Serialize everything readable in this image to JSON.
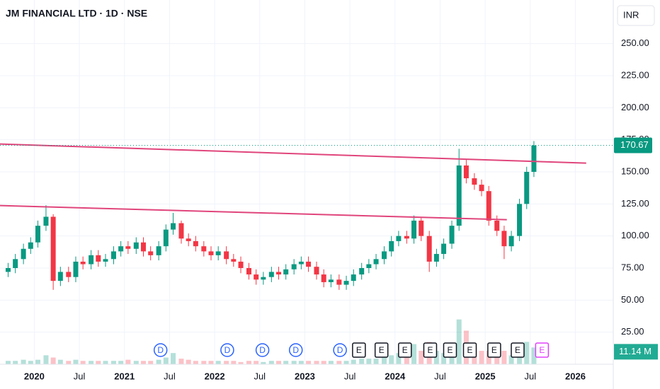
{
  "chart_data": {
    "type": "candlestick",
    "title": "JM FINANCIAL LTD · 1D · NSE",
    "currency": "INR",
    "x": [
      2019.71,
      2019.79,
      2019.88,
      2019.96,
      2020.04,
      2020.13,
      2020.21,
      2020.29,
      2020.38,
      2020.46,
      2020.54,
      2020.63,
      2020.71,
      2020.79,
      2020.88,
      2020.96,
      2021.04,
      2021.13,
      2021.21,
      2021.29,
      2021.38,
      2021.46,
      2021.54,
      2021.63,
      2021.71,
      2021.79,
      2021.88,
      2021.96,
      2022.04,
      2022.13,
      2022.21,
      2022.29,
      2022.38,
      2022.46,
      2022.54,
      2022.63,
      2022.71,
      2022.79,
      2022.88,
      2022.96,
      2023.04,
      2023.13,
      2023.21,
      2023.29,
      2023.38,
      2023.46,
      2023.54,
      2023.63,
      2023.71,
      2023.79,
      2023.88,
      2023.96,
      2024.04,
      2024.13,
      2024.21,
      2024.29,
      2024.38,
      2024.46,
      2024.54,
      2024.63,
      2024.71,
      2024.79,
      2024.88,
      2024.96,
      2025.04,
      2025.13,
      2025.21,
      2025.29,
      2025.38,
      2025.46,
      2025.54
    ],
    "open": [
      72,
      75,
      82,
      90,
      95,
      108,
      115,
      65,
      72,
      68,
      80,
      78,
      85,
      80,
      82,
      88,
      92,
      90,
      95,
      88,
      85,
      92,
      105,
      110,
      98,
      96,
      92,
      88,
      85,
      88,
      82,
      80,
      75,
      70,
      66,
      68,
      72,
      70,
      74,
      78,
      80,
      76,
      70,
      64,
      66,
      62,
      65,
      70,
      75,
      78,
      82,
      88,
      96,
      100,
      98,
      112,
      100,
      80,
      86,
      94,
      108,
      155,
      145,
      140,
      135,
      112,
      104,
      92,
      100,
      125,
      150
    ],
    "high": [
      79,
      86,
      94,
      99,
      112,
      124,
      117,
      76,
      76,
      84,
      84,
      89,
      89,
      86,
      92,
      96,
      96,
      99,
      99,
      92,
      96,
      109,
      118,
      112,
      102,
      100,
      96,
      92,
      92,
      92,
      86,
      84,
      79,
      74,
      72,
      76,
      76,
      78,
      82,
      84,
      84,
      80,
      74,
      70,
      70,
      69,
      74,
      79,
      82,
      86,
      92,
      100,
      104,
      104,
      116,
      114,
      104,
      90,
      98,
      112,
      168,
      160,
      149,
      144,
      139,
      116,
      108,
      104,
      129,
      154,
      174
    ],
    "low": [
      68,
      71,
      78,
      86,
      91,
      104,
      58,
      61,
      64,
      64,
      74,
      74,
      76,
      76,
      78,
      84,
      86,
      86,
      84,
      81,
      81,
      88,
      101,
      94,
      92,
      88,
      84,
      81,
      81,
      78,
      76,
      71,
      66,
      62,
      62,
      64,
      66,
      66,
      70,
      74,
      72,
      66,
      60,
      60,
      58,
      58,
      61,
      66,
      71,
      74,
      78,
      84,
      92,
      94,
      94,
      96,
      72,
      76,
      82,
      90,
      104,
      141,
      136,
      131,
      108,
      100,
      82,
      88,
      96,
      121,
      146
    ],
    "close": [
      75,
      82,
      90,
      95,
      108,
      115,
      65,
      72,
      68,
      80,
      78,
      85,
      80,
      82,
      88,
      92,
      90,
      95,
      88,
      85,
      92,
      105,
      110,
      98,
      96,
      92,
      88,
      85,
      88,
      82,
      80,
      75,
      70,
      66,
      68,
      72,
      70,
      74,
      78,
      80,
      76,
      70,
      64,
      66,
      62,
      65,
      70,
      75,
      78,
      82,
      88,
      96,
      100,
      98,
      112,
      100,
      80,
      86,
      94,
      108,
      155,
      145,
      140,
      135,
      112,
      104,
      92,
      100,
      125,
      150,
      170.67
    ],
    "volume": [
      3,
      3,
      4,
      3,
      4,
      8,
      6,
      4,
      3,
      4,
      3,
      3,
      3,
      3,
      3,
      3,
      4,
      3,
      3,
      3,
      4,
      6,
      10,
      5,
      4,
      3,
      3,
      3,
      3,
      3,
      3,
      2,
      3,
      3,
      2,
      3,
      3,
      3,
      3,
      3,
      3,
      3,
      3,
      3,
      3,
      3,
      4,
      5,
      5,
      5,
      6,
      8,
      10,
      8,
      18,
      12,
      20,
      12,
      10,
      15,
      40,
      30,
      15,
      12,
      12,
      10,
      12,
      8,
      12,
      20,
      15
    ],
    "volume_lim": [
      0,
      60
    ],
    "up_color": "#089981",
    "down_color": "#f23645",
    "last_price": 170.67,
    "last_volume": {
      "value": 11.14,
      "label": "11.14 M"
    },
    "trendlines": [
      {
        "x": [
          2019.62,
          2026.12
        ],
        "y": [
          171.7,
          156.8
        ],
        "color": "#e0457b"
      },
      {
        "x": [
          2019.62,
          2025.24
        ],
        "y": [
          123.7,
          112.7
        ],
        "color": "#e0457b"
      }
    ],
    "events": [
      {
        "x": 2021.4,
        "label": "D",
        "color": "#2962ff"
      },
      {
        "x": 2022.14,
        "label": "D",
        "color": "#2962ff"
      },
      {
        "x": 2022.53,
        "label": "D",
        "color": "#2962ff"
      },
      {
        "x": 2022.9,
        "label": "D",
        "color": "#2962ff"
      },
      {
        "x": 2023.39,
        "label": "D",
        "color": "#2962ff"
      },
      {
        "x": 2023.6,
        "label": "E",
        "color": "#131722"
      },
      {
        "x": 2023.85,
        "label": "E",
        "color": "#131722"
      },
      {
        "x": 2024.11,
        "label": "E",
        "color": "#131722"
      },
      {
        "x": 2024.39,
        "label": "E",
        "color": "#131722"
      },
      {
        "x": 2024.61,
        "label": "E",
        "color": "#131722"
      },
      {
        "x": 2024.83,
        "label": "E",
        "color": "#131722"
      },
      {
        "x": 2025.1,
        "label": "E",
        "color": "#131722"
      },
      {
        "x": 2025.36,
        "label": "E",
        "color": "#131722"
      },
      {
        "x": 2025.63,
        "label": "E",
        "color": "#e040fb"
      }
    ],
    "xlim": [
      2019.62,
      2026.42
    ],
    "xticks": [
      {
        "value": 2020,
        "label": "2020"
      },
      {
        "value": 2020.5,
        "label": "Jul"
      },
      {
        "value": 2021,
        "label": "2021"
      },
      {
        "value": 2021.5,
        "label": "Jul"
      },
      {
        "value": 2022,
        "label": "2022"
      },
      {
        "value": 2022.5,
        "label": "Jul"
      },
      {
        "value": 2023,
        "label": "2023"
      },
      {
        "value": 2023.5,
        "label": "Jul"
      },
      {
        "value": 2024,
        "label": "2024"
      },
      {
        "value": 2024.5,
        "label": "Jul"
      },
      {
        "value": 2025,
        "label": "2025"
      },
      {
        "value": 2025.5,
        "label": "Jul"
      },
      {
        "value": 2026,
        "label": "2026"
      }
    ],
    "ylim": [
      0,
      284
    ],
    "yticks": [
      {
        "value": 25,
        "label": "25.00"
      },
      {
        "value": 50,
        "label": "50.00"
      },
      {
        "value": 75,
        "label": "75.00"
      },
      {
        "value": 100,
        "label": "100.00"
      },
      {
        "value": 125,
        "label": "125.00"
      },
      {
        "value": 150,
        "label": "150.00"
      },
      {
        "value": 175,
        "label": "175.00"
      },
      {
        "value": 200,
        "label": "200.00"
      },
      {
        "value": 225,
        "label": "225.00"
      },
      {
        "value": 250,
        "label": "250.00"
      }
    ],
    "grid": true
  }
}
